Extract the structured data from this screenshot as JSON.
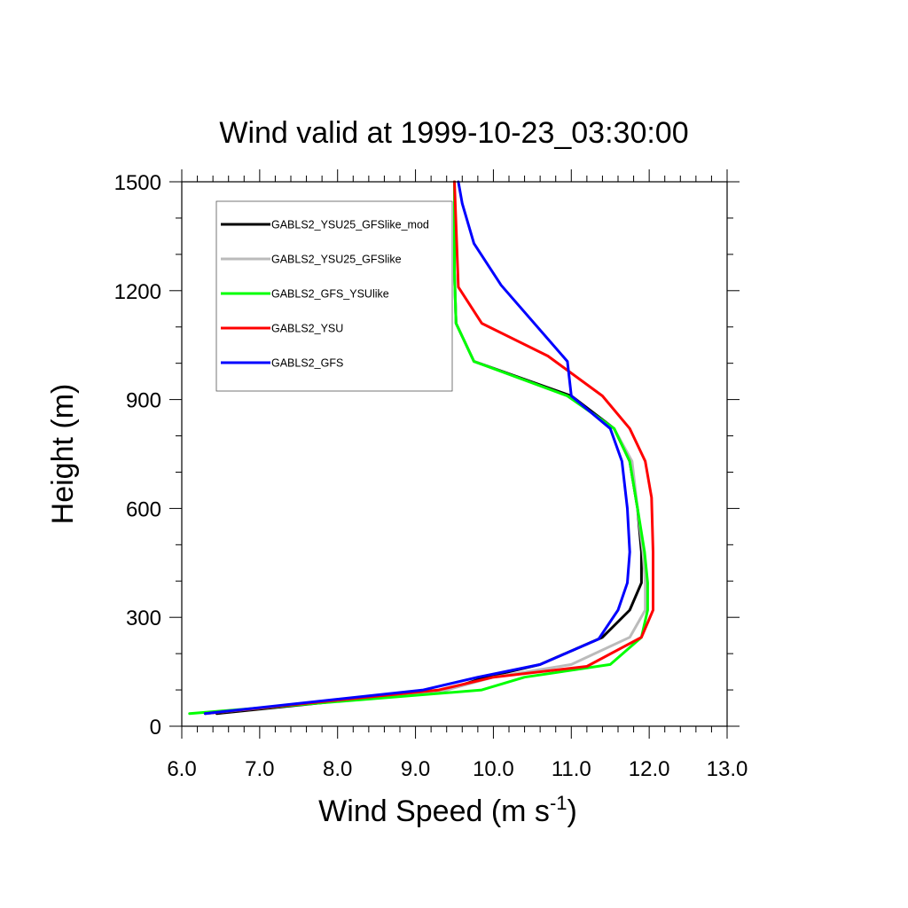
{
  "chart_data": {
    "type": "line",
    "title": "Wind valid at 1999-10-23_03:30:00",
    "xlabel": "Wind Speed (m s",
    "xlabel_sup": "-1",
    "xlabel_end": ")",
    "ylabel": "Height (m)",
    "xlim": [
      6.0,
      13.0
    ],
    "ylim": [
      0,
      1500
    ],
    "x_ticks": [
      "6.0",
      "7.0",
      "8.0",
      "9.0",
      "10.0",
      "11.0",
      "12.0",
      "13.0"
    ],
    "y_ticks": [
      "0",
      "300",
      "600",
      "900",
      "1200",
      "1500"
    ],
    "legend_position": "top-left",
    "series": [
      {
        "name": "GABLS2_YSU25_GFSlike_mod",
        "color": "#000000",
        "x": [
          6.45,
          9.4,
          9.9,
          10.6,
          11.4,
          11.75,
          11.9,
          11.9,
          11.85,
          11.75,
          11.55,
          11.0,
          9.75,
          9.52,
          9.5,
          9.5
        ],
        "y": [
          35,
          100,
          135,
          170,
          245,
          320,
          395,
          480,
          600,
          730,
          820,
          910,
          1005,
          1110,
          1250,
          1500
        ]
      },
      {
        "name": "GABLS2_YSU25_GFSlike",
        "color": "#bbbbbb",
        "x": [
          6.3,
          9.4,
          10.0,
          11.0,
          11.75,
          11.95,
          11.95,
          11.92,
          11.85,
          11.78,
          11.55,
          10.95,
          9.75,
          9.52,
          9.5,
          9.5
        ],
        "y": [
          35,
          100,
          135,
          170,
          245,
          320,
          395,
          480,
          600,
          730,
          820,
          910,
          1005,
          1110,
          1250,
          1500
        ]
      },
      {
        "name": "GABLS2_GFS_YSUlike",
        "color": "#00ff00",
        "x": [
          6.1,
          9.85,
          10.4,
          11.5,
          11.9,
          11.98,
          11.98,
          11.94,
          11.85,
          11.75,
          11.55,
          10.95,
          9.75,
          9.52,
          9.5,
          9.5
        ],
        "y": [
          35,
          100,
          135,
          170,
          245,
          320,
          395,
          480,
          600,
          730,
          820,
          910,
          1005,
          1110,
          1250,
          1500
        ]
      },
      {
        "name": "GABLS2_YSU",
        "color": "#ff0000",
        "x": [
          6.3,
          9.3,
          10.0,
          11.2,
          11.9,
          12.05,
          12.05,
          12.05,
          12.03,
          11.95,
          11.75,
          11.4,
          10.7,
          9.85,
          9.55,
          9.5
        ],
        "y": [
          35,
          100,
          135,
          165,
          245,
          320,
          395,
          480,
          630,
          730,
          820,
          910,
          1020,
          1110,
          1210,
          1500
        ]
      },
      {
        "name": "GABLS2_GFS",
        "color": "#0000ff",
        "x": [
          6.3,
          9.1,
          9.8,
          10.6,
          11.35,
          11.6,
          11.72,
          11.75,
          11.72,
          11.65,
          11.5,
          11.0,
          10.95,
          10.1,
          9.75,
          9.6,
          9.55
        ],
        "y": [
          35,
          100,
          135,
          170,
          240,
          320,
          395,
          480,
          600,
          730,
          820,
          910,
          1005,
          1215,
          1330,
          1440,
          1500
        ]
      }
    ]
  }
}
